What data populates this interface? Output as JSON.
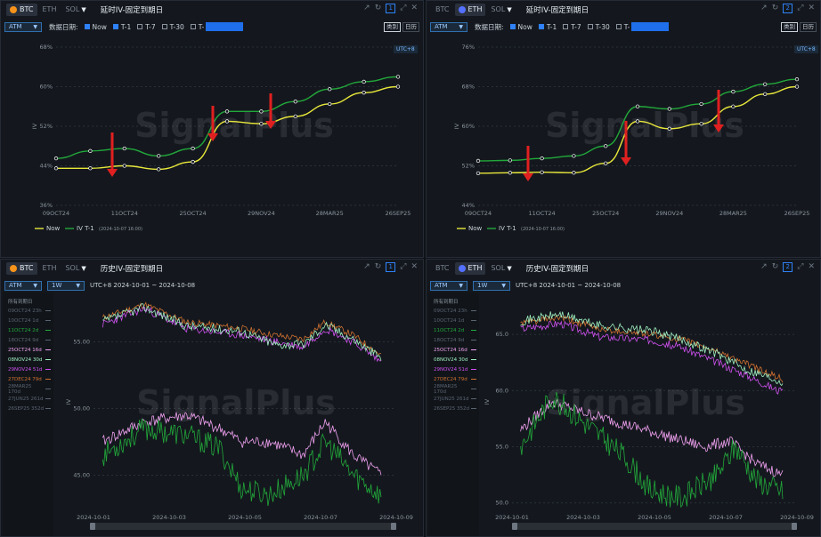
{
  "coins": [
    "BTC",
    "ETH",
    "SOL"
  ],
  "colors": {
    "btc": "#f7931a",
    "eth": "#5470ff",
    "now": "#e8e83a",
    "t1": "#22a83a",
    "arrow": "#e02020"
  },
  "top_controls": {
    "atm": "ATM",
    "date_label": "数据日期:",
    "checks": [
      {
        "label": "Now",
        "on": true
      },
      {
        "label": "T-1",
        "on": true
      },
      {
        "label": "T-7",
        "on": false
      },
      {
        "label": "T-30",
        "on": false
      },
      {
        "label": "T-",
        "on": false
      }
    ],
    "btn_category": "类别",
    "btn_date": "日历",
    "utc": "UTC+8"
  },
  "hist_controls": {
    "atm": "ATM",
    "window": "1W",
    "range": "UTC+8 2024-10-01 ~ 2024-10-08"
  },
  "legend_line": {
    "now": "Now",
    "t1": "IV T-1",
    "t1_time": "(2024-10-07 16:00)"
  },
  "expiry_list": {
    "header": "所有到期日",
    "items": [
      {
        "label": "09OCT24 23h",
        "color": "#5a6370",
        "active": false
      },
      {
        "label": "10OCT24 1d",
        "color": "#5a6370",
        "active": false
      },
      {
        "label": "11OCT24 2d",
        "color": "#22a83a",
        "active": true
      },
      {
        "label": "18OCT24 9d",
        "color": "#5a6370",
        "active": false
      },
      {
        "label": "25OCT24 16d",
        "color": "#f0a0f0",
        "active": true
      },
      {
        "label": "08NOV24 30d",
        "color": "#a0f0c0",
        "active": true
      },
      {
        "label": "29NOV24 51d",
        "color": "#d050f0",
        "active": true
      },
      {
        "label": "27DEC24 79d",
        "color": "#d07030",
        "active": true
      },
      {
        "label": "28MAR25 170d",
        "color": "#5a6370",
        "active": false
      },
      {
        "label": "27JUN25 261d",
        "color": "#5a6370",
        "active": false
      },
      {
        "label": "26SEP25 352d",
        "color": "#5a6370",
        "active": false
      }
    ]
  },
  "watermark": "SignalPlus",
  "panels": [
    {
      "coin": "BTC",
      "title": "延时IV-固定到期日",
      "num": "1"
    },
    {
      "coin": "ETH",
      "title": "延时IV-固定到期日",
      "num": "2"
    },
    {
      "coin": "BTC",
      "title": "历史IV-固定到期日",
      "num": "1"
    },
    {
      "coin": "ETH",
      "title": "历史IV-固定到期日",
      "num": "2"
    }
  ],
  "chart_data": [
    {
      "type": "line",
      "ylabel": "IV",
      "x_ticks": [
        "09OCT24",
        "11OCT24",
        "25OCT24",
        "29NOV24",
        "28MAR25",
        "26SEP25"
      ],
      "y_ticks": [
        "36%",
        "44%",
        "52%",
        "60%",
        "68%"
      ],
      "ylim": [
        36,
        68
      ],
      "series": [
        {
          "name": "Now",
          "values": [
            43.5,
            43.5,
            44.0,
            43.3,
            44.8,
            53.0,
            52.5,
            54.0,
            56.5,
            58.8,
            60.0
          ]
        },
        {
          "name": "IV T-1",
          "values": [
            45.5,
            47.0,
            47.5,
            46.0,
            47.5,
            55.0,
            55.0,
            57.0,
            59.5,
            61.0,
            62.0
          ]
        }
      ]
    },
    {
      "type": "line",
      "ylabel": "IV",
      "x_ticks": [
        "09OCT24",
        "11OCT24",
        "25OCT24",
        "29NOV24",
        "28MAR25",
        "26SEP25"
      ],
      "y_ticks": [
        "44%",
        "52%",
        "60%",
        "68%",
        "76%"
      ],
      "ylim": [
        44,
        76
      ],
      "series": [
        {
          "name": "Now",
          "values": [
            50.5,
            50.6,
            50.7,
            50.6,
            52.5,
            61.0,
            59.5,
            60.5,
            64.0,
            66.5,
            68.0
          ]
        },
        {
          "name": "IV T-1",
          "values": [
            53.0,
            53.1,
            53.5,
            54.0,
            56.0,
            64.0,
            63.5,
            64.5,
            67.0,
            68.5,
            69.5
          ]
        }
      ]
    },
    {
      "type": "line",
      "ylabel": "IV",
      "x_ticks": [
        "2024-10-01",
        "2024-10-03",
        "2024-10-05",
        "2024-10-07",
        "2024-10-09"
      ],
      "y_ticks": [
        "45.00",
        "50.00",
        "55.00"
      ],
      "ylim": [
        42.5,
        58.5
      ]
    },
    {
      "type": "line",
      "ylabel": "IV",
      "x_ticks": [
        "2024-10-01",
        "2024-10-03",
        "2024-10-05",
        "2024-10-07",
        "2024-10-09"
      ],
      "y_ticks": [
        "50.0",
        "55.0",
        "60.0",
        "65.0"
      ],
      "ylim": [
        49.5,
        68.5
      ]
    }
  ]
}
